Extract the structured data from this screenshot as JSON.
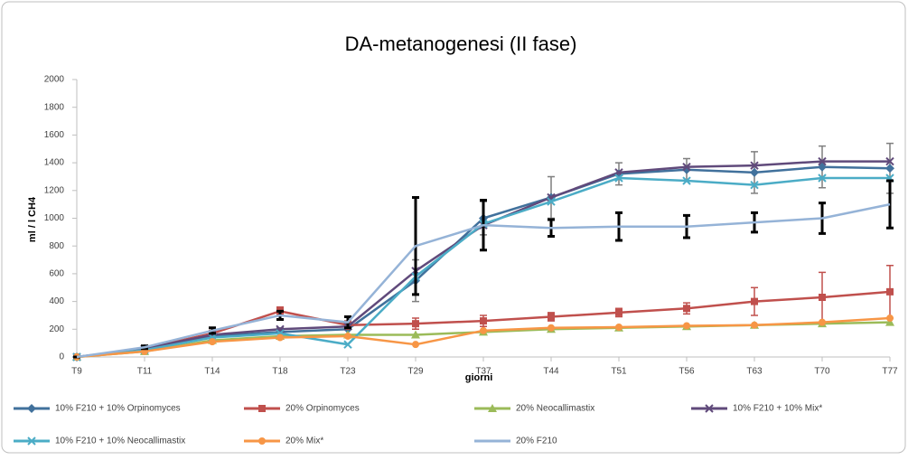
{
  "chart_data": {
    "type": "line",
    "title": "DA-metanogenesi (II fase)",
    "y_label": "ml / l CH4",
    "x_label": "giorni",
    "categories": [
      "T9",
      "T11",
      "T14",
      "T18",
      "T23",
      "T29",
      "T37",
      "T44",
      "T51",
      "T56",
      "T63",
      "T70",
      "T77"
    ],
    "ylim": [
      0,
      2000
    ],
    "yticks": [
      0,
      200,
      400,
      600,
      800,
      1000,
      1200,
      1400,
      1600,
      1800,
      2000
    ],
    "grid": false,
    "legend": "bottom",
    "series": [
      {
        "name": "10% F210 + 10% Orpinomyces",
        "color": "#41719c",
        "marker": "diamond",
        "values": [
          0,
          60,
          150,
          180,
          200,
          550,
          1000,
          1150,
          1320,
          1350,
          1330,
          1370,
          1360
        ],
        "errors": [
          0,
          20,
          30,
          30,
          60,
          150,
          120,
          150,
          80,
          80,
          150,
          150,
          180
        ],
        "error_color": "#7f7f7f"
      },
      {
        "name": "20% Orpinomyces",
        "color": "#c0504d",
        "marker": "square",
        "values": [
          0,
          60,
          170,
          330,
          230,
          240,
          260,
          290,
          320,
          350,
          400,
          430,
          470
        ],
        "errors": [
          0,
          10,
          20,
          30,
          30,
          40,
          40,
          30,
          30,
          40,
          100,
          180,
          190
        ],
        "error_color": "#c0504d"
      },
      {
        "name": "20% Neocallimastix",
        "color": "#9bbb59",
        "marker": "triangle",
        "values": [
          0,
          40,
          120,
          150,
          160,
          160,
          180,
          200,
          210,
          220,
          230,
          240,
          250
        ]
      },
      {
        "name": "10% F210 + 10% Mix*",
        "color": "#604a7b",
        "marker": "x",
        "values": [
          0,
          60,
          160,
          200,
          220,
          620,
          950,
          1150,
          1330,
          1370,
          1380,
          1410,
          1410
        ]
      },
      {
        "name": "10% F210 + 10% Neocallimastix",
        "color": "#4bacc6",
        "marker": "x",
        "values": [
          0,
          50,
          140,
          170,
          90,
          580,
          960,
          1120,
          1290,
          1270,
          1240,
          1290,
          1290
        ]
      },
      {
        "name": "20% Mix*",
        "color": "#f79646",
        "marker": "circle",
        "values": [
          0,
          40,
          110,
          140,
          150,
          90,
          190,
          210,
          215,
          225,
          230,
          250,
          280
        ]
      },
      {
        "name": "20% F210",
        "color": "#95b3d7",
        "marker": "none",
        "values": [
          0,
          70,
          190,
          300,
          250,
          800,
          950,
          930,
          940,
          940,
          970,
          1000,
          1100
        ],
        "errors": [
          0,
          10,
          20,
          30,
          40,
          350,
          180,
          60,
          100,
          80,
          70,
          110,
          170
        ],
        "error_color": "#000000"
      }
    ]
  }
}
